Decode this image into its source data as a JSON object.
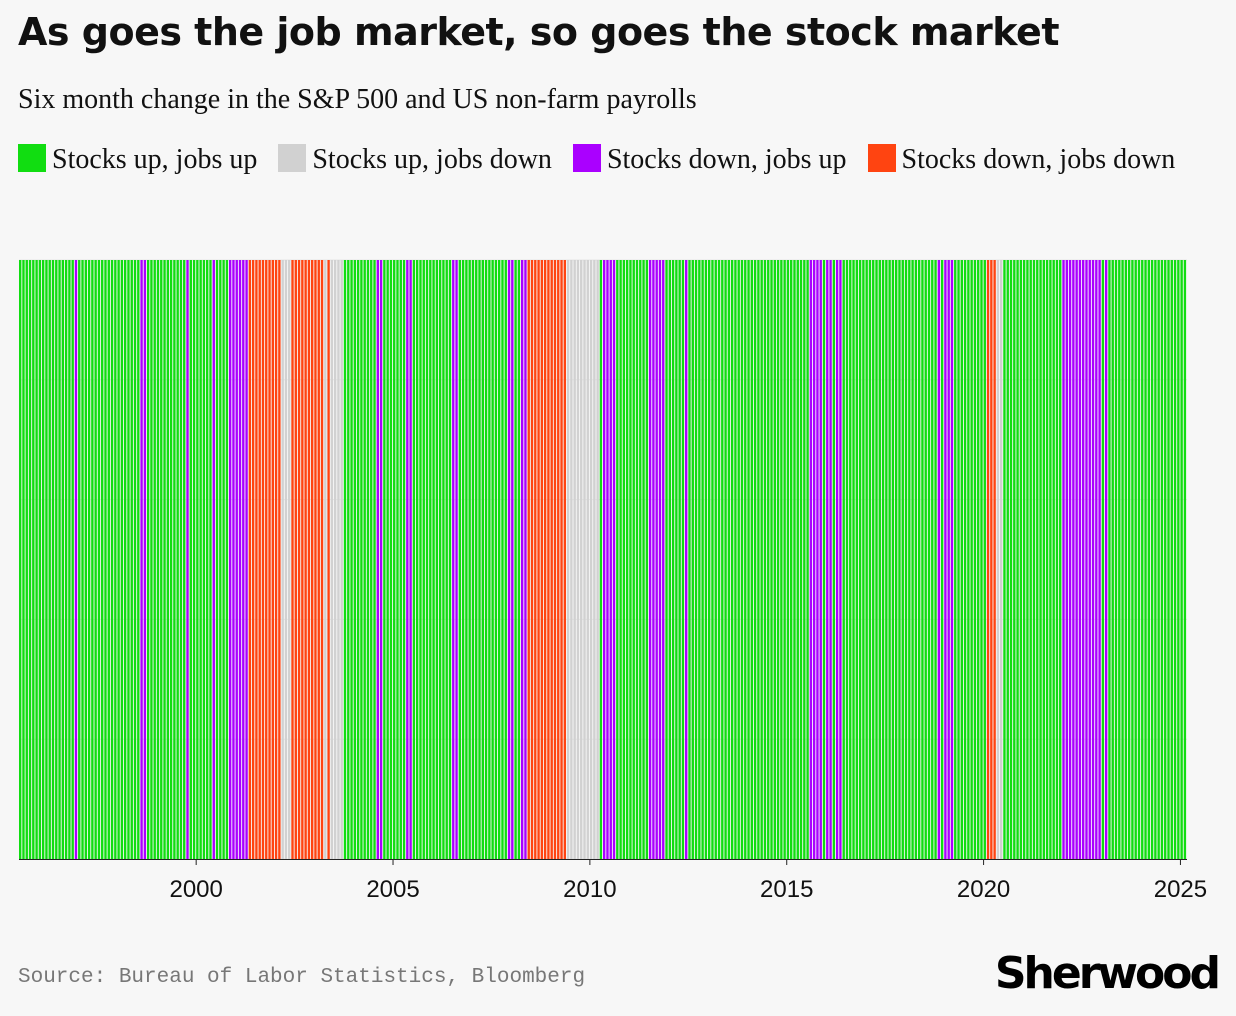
{
  "header": {
    "title": "As goes the job market, so goes the stock market",
    "subtitle": "Six month change in the S&P 500 and US non-farm payrolls"
  },
  "legend": [
    {
      "label": "Stocks up, jobs up",
      "color": "#11dd11"
    },
    {
      "label": "Stocks up, jobs down",
      "color": "#d1d1d1"
    },
    {
      "label": "Stocks down, jobs up",
      "color": "#aa00ff"
    },
    {
      "label": "Stocks down, jobs down",
      "color": "#ff4411"
    }
  ],
  "footer": {
    "source": "Source: Bureau of Labor Statistics, Bloomberg",
    "logo": "Sherwood"
  },
  "chart_data": {
    "type": "bar",
    "x_unit": "month",
    "xlim": [
      "1995-07",
      "2025-02"
    ],
    "x_ticks": [
      "2000",
      "2005",
      "2010",
      "2015",
      "2020",
      "2025"
    ],
    "bar_value": 1,
    "category_colors": {
      "up_up": "#11dd11",
      "up_down": "#d1d1d1",
      "down_up": "#aa00ff",
      "down_down": "#ff4411"
    },
    "periods": [
      {
        "start": "1995-07",
        "end": "1996-11",
        "category": "up_up"
      },
      {
        "start": "1996-12",
        "end": "1996-12",
        "category": "down_up"
      },
      {
        "start": "1997-01",
        "end": "1998-07",
        "category": "up_up"
      },
      {
        "start": "1998-08",
        "end": "1998-09",
        "category": "down_up"
      },
      {
        "start": "1998-10",
        "end": "1999-09",
        "category": "up_up"
      },
      {
        "start": "1999-10",
        "end": "1999-10",
        "category": "down_up"
      },
      {
        "start": "1999-11",
        "end": "2000-05",
        "category": "up_up"
      },
      {
        "start": "2000-06",
        "end": "2000-06",
        "category": "down_up"
      },
      {
        "start": "2000-07",
        "end": "2000-10",
        "category": "up_up"
      },
      {
        "start": "2000-11",
        "end": "2001-04",
        "category": "down_up"
      },
      {
        "start": "2001-05",
        "end": "2002-02",
        "category": "down_down"
      },
      {
        "start": "2002-03",
        "end": "2002-05",
        "category": "up_down"
      },
      {
        "start": "2002-06",
        "end": "2003-03",
        "category": "down_down"
      },
      {
        "start": "2003-04",
        "end": "2003-04",
        "category": "up_down"
      },
      {
        "start": "2003-05",
        "end": "2003-05",
        "category": "down_down"
      },
      {
        "start": "2003-06",
        "end": "2003-09",
        "category": "up_down"
      },
      {
        "start": "2003-10",
        "end": "2004-07",
        "category": "up_up"
      },
      {
        "start": "2004-08",
        "end": "2004-09",
        "category": "down_up"
      },
      {
        "start": "2004-10",
        "end": "2005-04",
        "category": "up_up"
      },
      {
        "start": "2005-05",
        "end": "2005-06",
        "category": "down_up"
      },
      {
        "start": "2005-07",
        "end": "2006-06",
        "category": "up_up"
      },
      {
        "start": "2006-07",
        "end": "2006-08",
        "category": "down_up"
      },
      {
        "start": "2006-09",
        "end": "2007-11",
        "category": "up_up"
      },
      {
        "start": "2007-12",
        "end": "2008-01",
        "category": "down_up"
      },
      {
        "start": "2008-02",
        "end": "2008-03",
        "category": "up_up"
      },
      {
        "start": "2008-04",
        "end": "2008-05",
        "category": "down_up"
      },
      {
        "start": "2008-06",
        "end": "2009-05",
        "category": "down_down"
      },
      {
        "start": "2009-06",
        "end": "2010-03",
        "category": "up_down"
      },
      {
        "start": "2010-04",
        "end": "2010-04",
        "category": "up_up"
      },
      {
        "start": "2010-05",
        "end": "2010-08",
        "category": "down_up"
      },
      {
        "start": "2010-09",
        "end": "2011-06",
        "category": "up_up"
      },
      {
        "start": "2011-07",
        "end": "2011-11",
        "category": "down_up"
      },
      {
        "start": "2011-12",
        "end": "2012-05",
        "category": "up_up"
      },
      {
        "start": "2012-06",
        "end": "2012-06",
        "category": "down_up"
      },
      {
        "start": "2012-07",
        "end": "2015-07",
        "category": "up_up"
      },
      {
        "start": "2015-08",
        "end": "2015-11",
        "category": "down_up"
      },
      {
        "start": "2015-12",
        "end": "2015-12",
        "category": "up_up"
      },
      {
        "start": "2016-01",
        "end": "2016-02",
        "category": "down_up"
      },
      {
        "start": "2016-03",
        "end": "2016-03",
        "category": "up_up"
      },
      {
        "start": "2016-04",
        "end": "2016-05",
        "category": "down_up"
      },
      {
        "start": "2016-06",
        "end": "2018-10",
        "category": "up_up"
      },
      {
        "start": "2018-11",
        "end": "2018-11",
        "category": "down_up"
      },
      {
        "start": "2018-12",
        "end": "2018-12",
        "category": "up_up"
      },
      {
        "start": "2019-01",
        "end": "2019-03",
        "category": "down_up"
      },
      {
        "start": "2019-04",
        "end": "2020-01",
        "category": "up_up"
      },
      {
        "start": "2020-02",
        "end": "2020-04",
        "category": "down_down"
      },
      {
        "start": "2020-05",
        "end": "2020-06",
        "category": "up_down"
      },
      {
        "start": "2020-07",
        "end": "2021-12",
        "category": "up_up"
      },
      {
        "start": "2022-01",
        "end": "2022-12",
        "category": "down_up"
      },
      {
        "start": "2023-01",
        "end": "2023-01",
        "category": "up_up"
      },
      {
        "start": "2023-02",
        "end": "2023-02",
        "category": "down_up"
      },
      {
        "start": "2023-03",
        "end": "2025-02",
        "category": "up_up"
      }
    ]
  }
}
